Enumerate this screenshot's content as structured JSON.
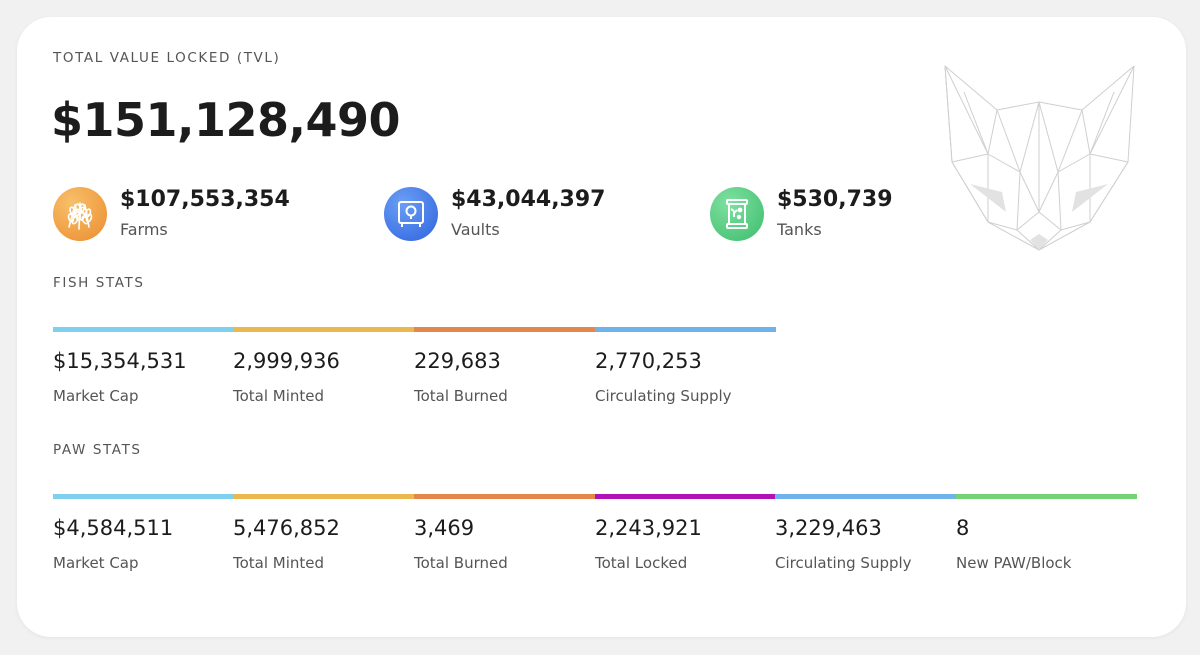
{
  "tvl": {
    "label": "TOTAL VALUE LOCKED (TVL)",
    "value": "$151,128,490",
    "items": [
      {
        "value": "$107,553,354",
        "label": "Farms",
        "color": "#f0a44a"
      },
      {
        "value": "$43,044,397",
        "label": "Vaults",
        "color": "#4a7fec"
      },
      {
        "value": "$530,739",
        "label": "Tanks",
        "color": "#5ccf85"
      }
    ]
  },
  "fish": {
    "label": "FISH STATS",
    "stats": [
      {
        "value": "$15,354,531",
        "label": "Market Cap",
        "color": "#7fd0ef"
      },
      {
        "value": "2,999,936",
        "label": "Total Minted",
        "color": "#eab84f"
      },
      {
        "value": "229,683",
        "label": "Total Burned",
        "color": "#e4874a"
      },
      {
        "value": "2,770,253",
        "label": "Circulating Supply",
        "color": "#6fb3ea"
      }
    ]
  },
  "paw": {
    "label": "PAW STATS",
    "stats": [
      {
        "value": "$4,584,511",
        "label": "Market Cap",
        "color": "#7fd0ef"
      },
      {
        "value": "5,476,852",
        "label": "Total Minted",
        "color": "#eab84f"
      },
      {
        "value": "3,469",
        "label": "Total Burned",
        "color": "#e4874a"
      },
      {
        "value": "2,243,921",
        "label": "Total Locked",
        "color": "#b012b5"
      },
      {
        "value": "3,229,463",
        "label": "Circulating Supply",
        "color": "#6fb3ea"
      },
      {
        "value": "8",
        "label": "New PAW/Block",
        "color": "#74d374"
      }
    ]
  },
  "icons": {
    "farms": "wheat-icon",
    "vaults": "safe-icon",
    "tanks": "tank-icon",
    "logo": "cat-logo"
  }
}
